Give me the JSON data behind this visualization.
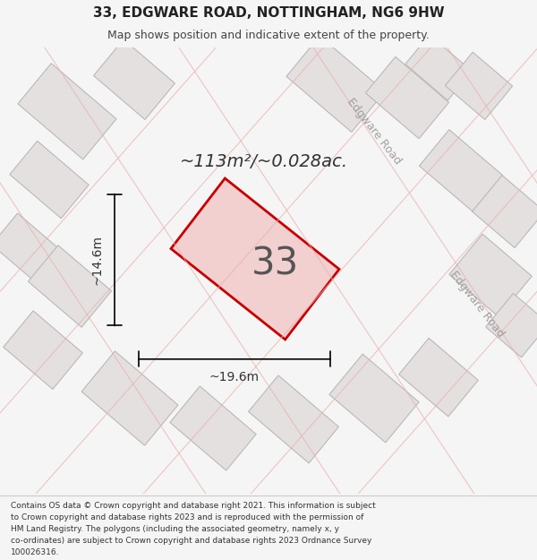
{
  "title_line1": "33, EDGWARE ROAD, NOTTINGHAM, NG6 9HW",
  "title_line2": "Map shows position and indicative extent of the property.",
  "footer_lines": [
    "Contains OS data © Crown copyright and database right 2021. This information is subject",
    "to Crown copyright and database rights 2023 and is reproduced with the permission of",
    "HM Land Registry. The polygons (including the associated geometry, namely x, y",
    "co-ordinates) are subject to Crown copyright and database rights 2023 Ordnance Survey",
    "100026316."
  ],
  "area_text": "~113m²/~0.028ac.",
  "property_number": "33",
  "dim_width": "~19.6m",
  "dim_height": "~14.6m",
  "bg_color": "#f5f5f5",
  "map_bg": "#eeecec",
  "road_label_1": "Edgware Road",
  "road_label_2": "Edgware Road",
  "property_fill": "#f2d0d0",
  "property_edge": "#cc0000",
  "building_fill": "#e4e0e0",
  "building_edge": "#bbb8b8",
  "road_line_color": "#e8b0b0"
}
